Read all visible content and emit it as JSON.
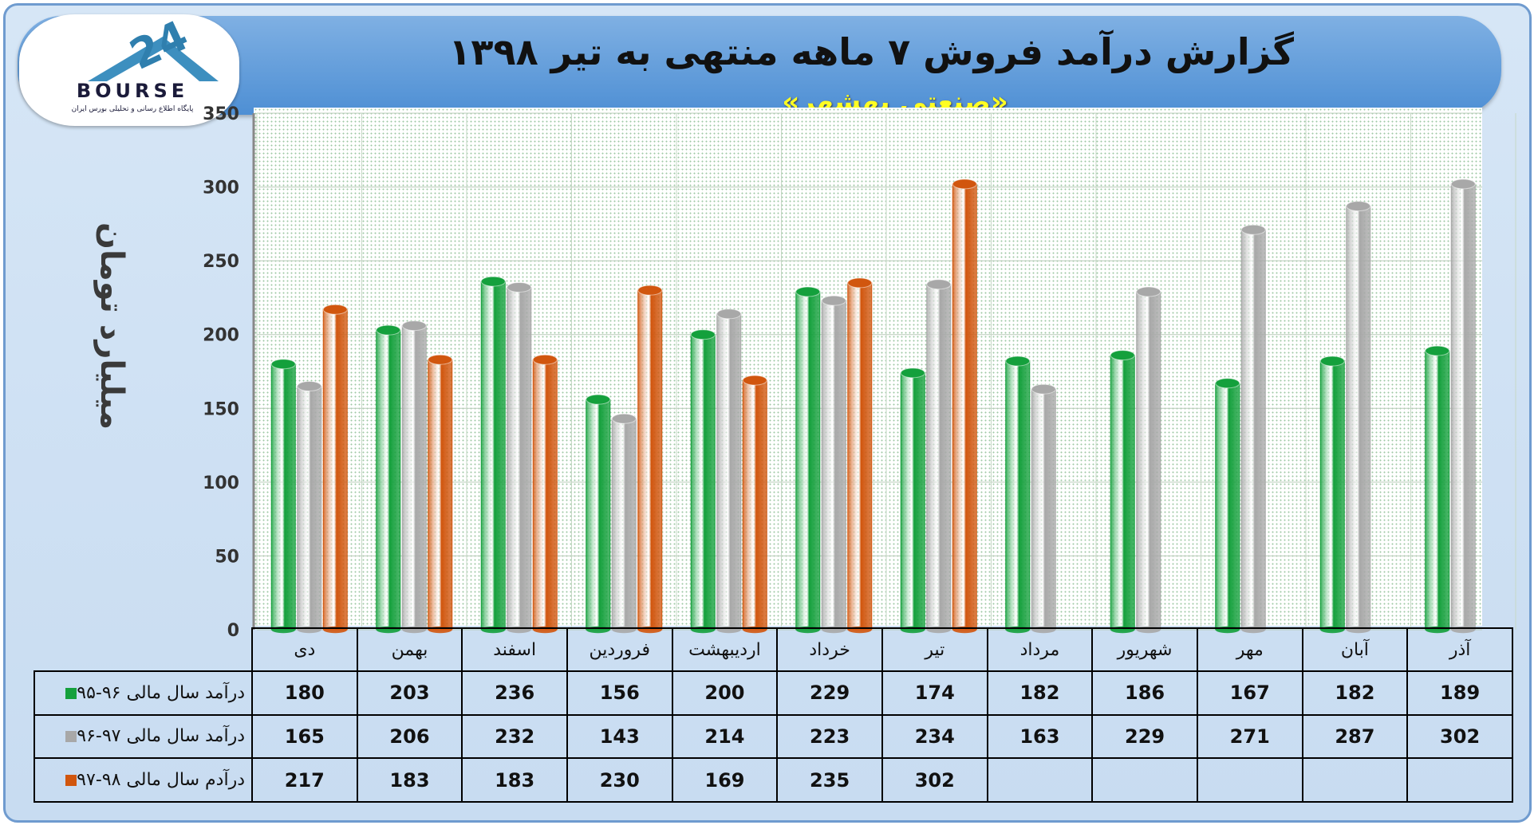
{
  "header": {
    "title": "گزارش درآمد فروش ۷ ماهه منتهی به تیر ۱۳۹۸",
    "subtitle": "«صنعتی بهشهر»"
  },
  "logo": {
    "text": "BOURSE",
    "caption": "پایگاه اطلاع رسانی و تحلیلی بورس ایران"
  },
  "colors": {
    "green": "#14a03c",
    "gray": "#a8a8a8",
    "orange": "#d1560e",
    "banner": "#5a96d8",
    "frame": "#c8dcf1"
  },
  "chart_data": {
    "type": "bar",
    "ylabel": "میلیارد تومان",
    "ylim": [
      0,
      350
    ],
    "yticks": [
      0,
      50,
      100,
      150,
      200,
      250,
      300,
      350
    ],
    "grid": true,
    "categories": [
      "دی",
      "بهمن",
      "اسفند",
      "فروردین",
      "اردیبهشت",
      "خرداد",
      "تیر",
      "مرداد",
      "شهریور",
      "مهر",
      "آبان",
      "آذر"
    ],
    "series": [
      {
        "name": "درآمد سال مالی ۹۶-۹۵",
        "color": "#14a03c",
        "values": [
          180,
          203,
          236,
          156,
          200,
          229,
          174,
          182,
          186,
          167,
          182,
          189
        ]
      },
      {
        "name": "درآمد سال مالی ۹۷-۹۶",
        "color": "#a8a8a8",
        "values": [
          165,
          206,
          232,
          143,
          214,
          223,
          234,
          163,
          229,
          271,
          287,
          302
        ]
      },
      {
        "name": "درآدم سال مالی ۹۸-۹۷",
        "color": "#d1560e",
        "values": [
          217,
          183,
          183,
          230,
          169,
          235,
          302,
          null,
          null,
          null,
          null,
          null
        ]
      }
    ]
  }
}
